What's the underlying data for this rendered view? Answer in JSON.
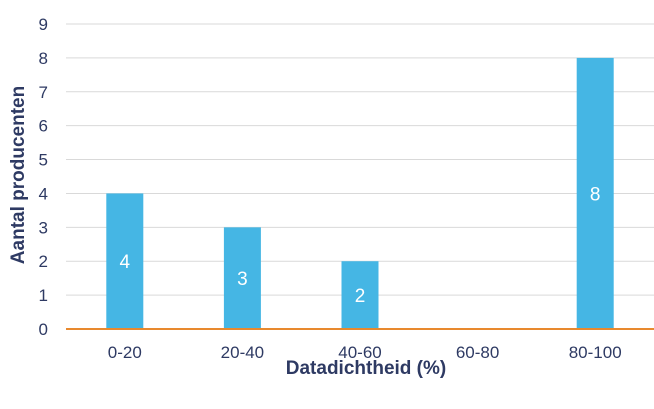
{
  "chart_data": {
    "type": "bar",
    "title": "",
    "xlabel": "Datadichtheid (%)",
    "ylabel": "Aantal producenten",
    "categories": [
      "0-20",
      "20-40",
      "40-60",
      "60-80",
      "80-100"
    ],
    "values": [
      4,
      3,
      2,
      0,
      8
    ],
    "data_labels": [
      "4",
      "3",
      "2",
      "",
      "8"
    ],
    "ylim": [
      0,
      9
    ],
    "yticks": [
      "0",
      "1",
      "2",
      "3",
      "4",
      "5",
      "6",
      "7",
      "8",
      "9"
    ],
    "grid": true,
    "legend": "none",
    "colors": {
      "bar": "#45b6e4",
      "gridline": "#d9d9d9",
      "baseline": "#e8892e",
      "text": "#2e3a63",
      "data_label": "#ffffff"
    }
  }
}
